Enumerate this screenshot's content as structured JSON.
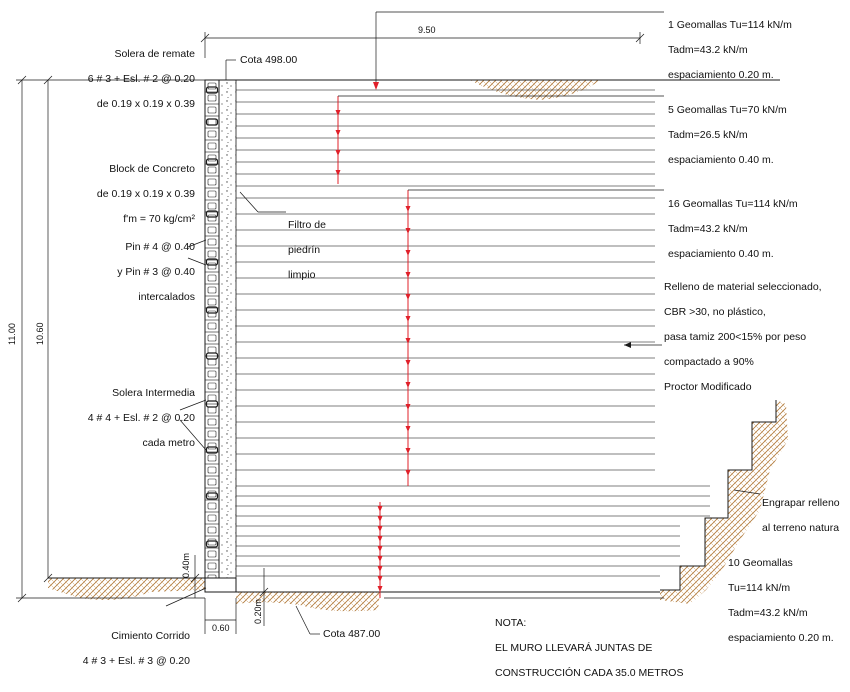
{
  "labels": {
    "solera_remate": [
      "Solera de remate",
      "6 # 3 + Esl. # 2 @ 0.20",
      "de 0.19 x 0.19 x 0.39"
    ],
    "block": [
      "Block de Concreto",
      "de 0.19 x 0.19 x 0.39",
      "f'm = 70 kg/cm²"
    ],
    "pins": [
      "Pin # 4 @ 0.40",
      "y Pin # 3 @ 0.40",
      "intercalados"
    ],
    "solera_intermedia": [
      "Solera Intermedia",
      "4 # 4 + Esl. # 2 @ 0.20",
      "cada metro"
    ],
    "cimiento": [
      "Cimiento Corrido",
      "4 # 3 + Esl. # 3 @ 0.20"
    ],
    "filtro": [
      "Filtro de",
      "piedrín",
      "limpio"
    ],
    "cota_top": "Cota 498.00",
    "cota_bottom": "Cota 487.00",
    "geo1": [
      "1 Geomallas Tu=114 kN/m",
      "Tadm=43.2 kN/m",
      "espaciamiento 0.20 m."
    ],
    "geo5": [
      "5 Geomallas Tu=70 kN/m",
      "Tadm=26.5 kN/m",
      "espaciamiento 0.40 m."
    ],
    "geo16": [
      "16 Geomallas Tu=114 kN/m",
      "Tadm=43.2 kN/m",
      "espaciamiento 0.40 m."
    ],
    "relleno": [
      "Relleno de material seleccionado,",
      "CBR >30, no plástico,",
      "pasa tamiz 200<15% por peso",
      "compactado a 90%",
      "Proctor Modificado"
    ],
    "engrapar": [
      "Engrapar relleno",
      "al terreno natura"
    ],
    "geo10": [
      "10 Geomallas",
      "Tu=114 kN/m",
      "Tadm=43.2 kN/m",
      "espaciamiento 0.20 m."
    ],
    "nota": [
      "NOTA:",
      "EL MURO LLEVARÁ JUNTAS DE",
      "CONSTRUCCIÓN CADA 35.0 METROS"
    ]
  },
  "dimensions": {
    "width": "9.50",
    "total_height": "11.00",
    "wall_height": "10.60",
    "embed": "0.40m",
    "footing_depth": "0.20m",
    "footing_width": "0.60"
  },
  "colors": {
    "line": "#1a1a1a",
    "arrow_red": "#e0202a",
    "hatch": "#b0793a"
  }
}
